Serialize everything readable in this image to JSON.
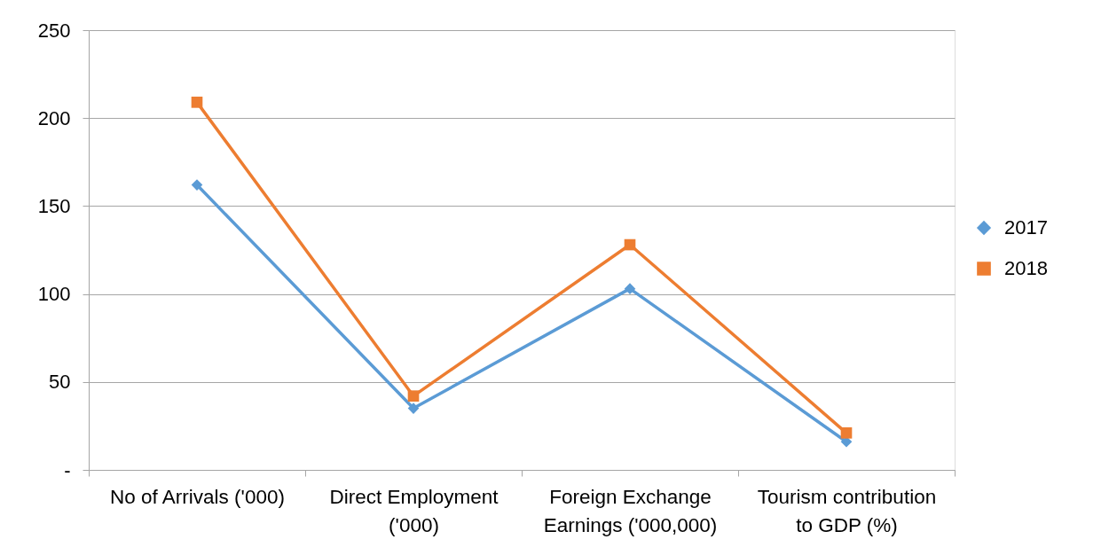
{
  "chart_data": {
    "type": "line",
    "categories": [
      "No of Arrivals ('000)",
      "Direct Employment ('000)",
      "Foreign Exchange Earnings ('000,000)",
      "Tourism contribution to GDP (%)"
    ],
    "series": [
      {
        "name": "2017",
        "color": "#5b9bd5",
        "marker": "diamond",
        "values": [
          162,
          35,
          103,
          16
        ]
      },
      {
        "name": "2018",
        "color": "#ed7d31",
        "marker": "square",
        "values": [
          209,
          42,
          128,
          21
        ]
      }
    ],
    "ylim": [
      0,
      250
    ],
    "yticks": [
      {
        "value": 0,
        "label": "-"
      },
      50,
      100,
      150,
      200,
      250
    ],
    "grid": "y",
    "legend": "right",
    "line_style": "solid"
  }
}
